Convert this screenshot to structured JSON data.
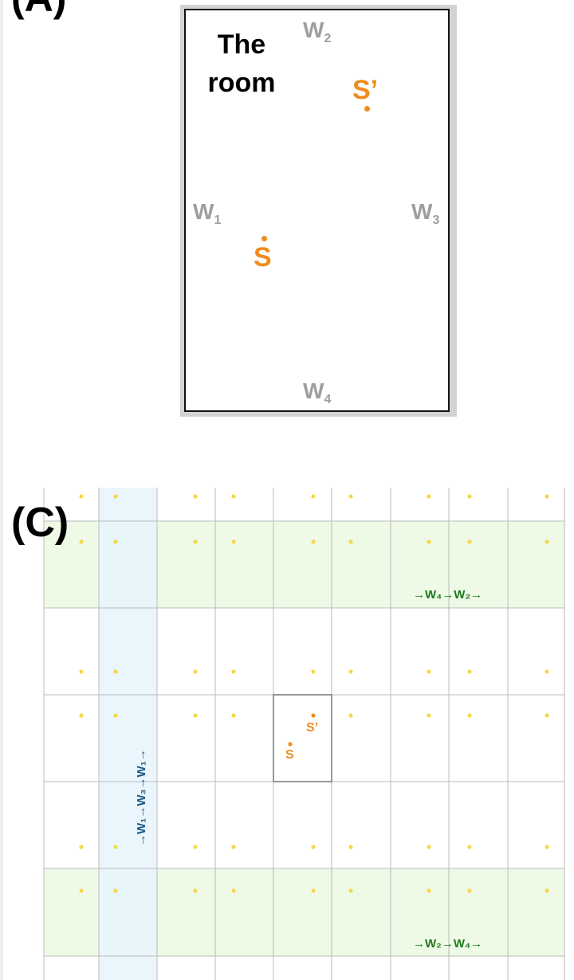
{
  "panels": {
    "a_label": "(A)",
    "c_label": "(C)"
  },
  "room": {
    "title_line1": "The",
    "title_line2": "room"
  },
  "walls": {
    "w1": {
      "letter": "W",
      "sub": "1"
    },
    "w2": {
      "letter": "W",
      "sub": "2"
    },
    "w3": {
      "letter": "W",
      "sub": "3"
    },
    "w4": {
      "letter": "W",
      "sub": "4"
    }
  },
  "sources": {
    "s": "S",
    "s_prime": "S’"
  },
  "tiling": {
    "columns": 9,
    "rows": 5,
    "sequences": {
      "vertical": "→W₁→W₃→W₁→",
      "top_horizontal": "→W₄→W₂→",
      "bottom_horizontal": "→W₂→W₄→"
    }
  },
  "colors": {
    "source": "#f08c1e",
    "wall_label": "#9e9e9e",
    "image_dot": "#f5d84a",
    "vertical_band": "#e6f4fc",
    "horizontal_band": "#eefae6",
    "vertical_sequence": "#1c5a86",
    "horizontal_sequence": "#1e7a1e",
    "grid": "#bbbbbb"
  }
}
